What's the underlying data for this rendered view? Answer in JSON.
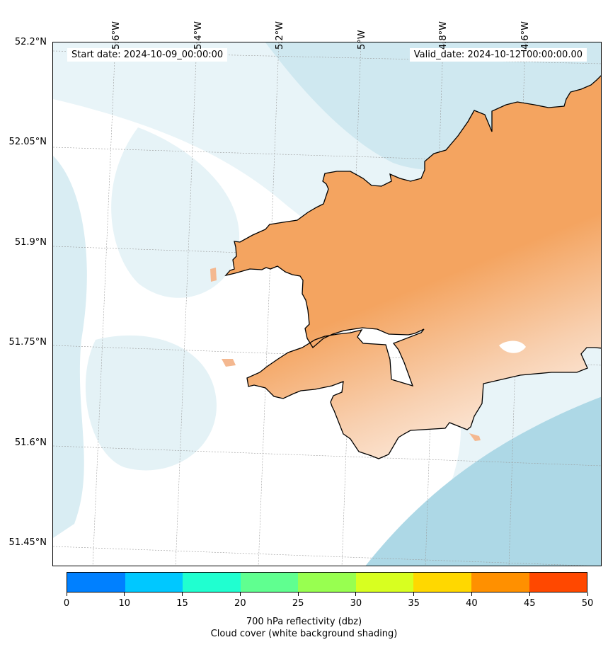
{
  "map": {
    "start_date_label": "Start date: 2024-10-09_00:00:00",
    "valid_date_label": "Valid_date: 2024-10-12T00:00:00.00",
    "lat_labels": [
      "52.2°N",
      "52.05°N",
      "51.9°N",
      "51.75°N",
      "51.6°N",
      "51.45°N"
    ],
    "lon_labels": [
      "5.6°W",
      "5.4°W",
      "5.2°W",
      "5°W",
      "4.8°W",
      "4.6°W"
    ],
    "colors": {
      "sea_cloud": "#add8e6",
      "land_reflectivity": "#f4a460",
      "background": "#ffffff",
      "coastline": "#000000"
    }
  },
  "colorbar": {
    "ticks": [
      "0",
      "10",
      "15",
      "20",
      "25",
      "30",
      "35",
      "40",
      "45",
      "50"
    ],
    "colors": [
      "#0080ff",
      "#00c8ff",
      "#20ffd0",
      "#60ff90",
      "#98ff50",
      "#d8ff20",
      "#ffd800",
      "#ff9000",
      "#ff4800"
    ],
    "title_line1": "700 hPa reflectivity (dbz)",
    "title_line2": "Cloud cover (white background shading)"
  }
}
